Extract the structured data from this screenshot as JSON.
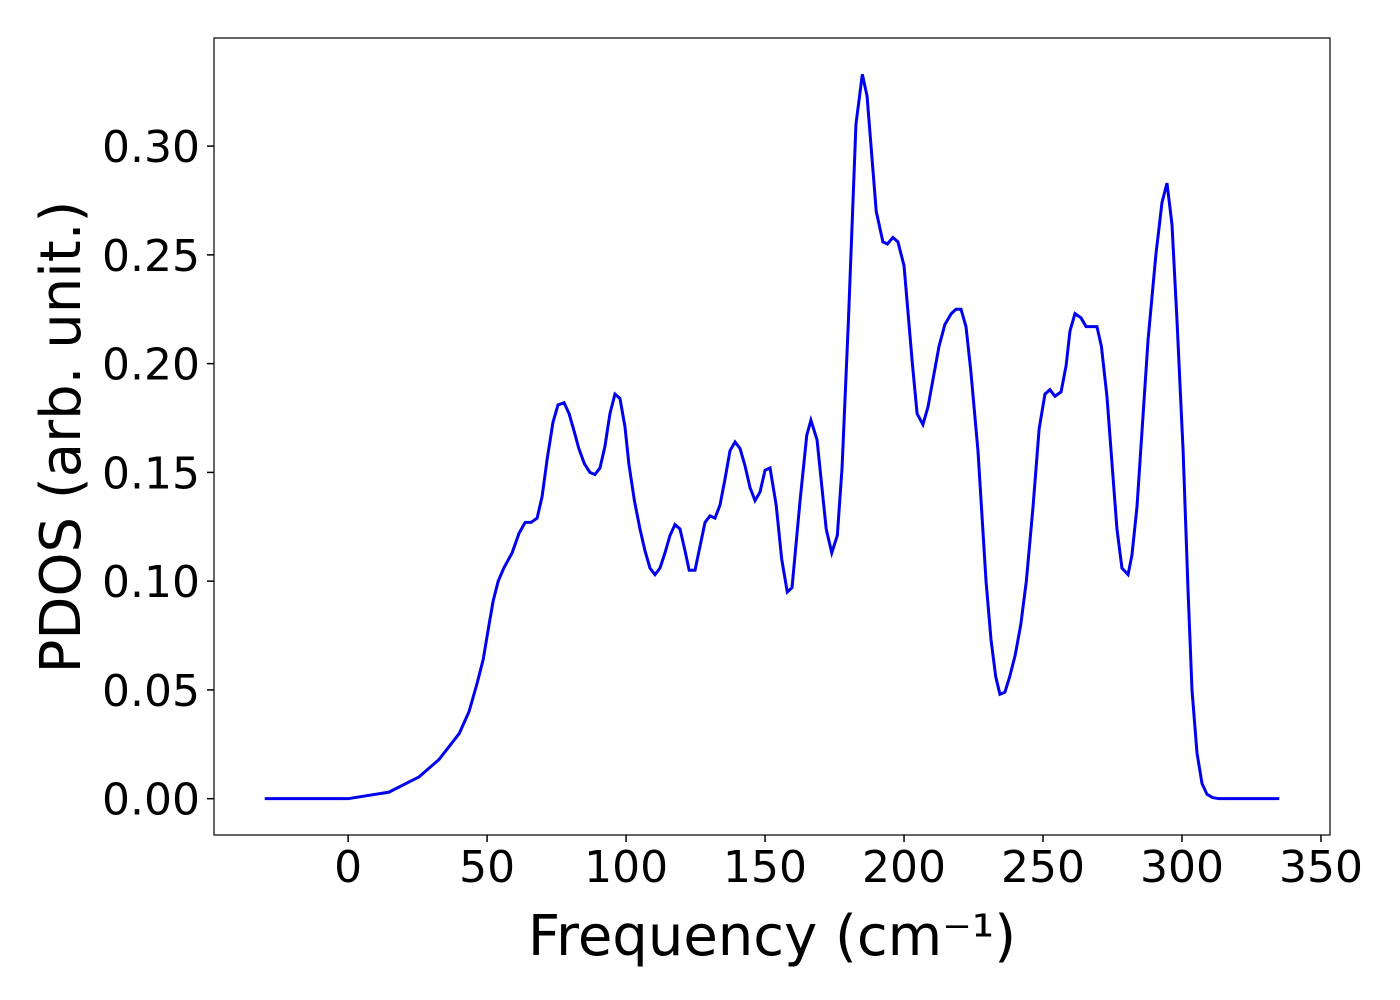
{
  "chart_data": {
    "type": "line",
    "xlabel": "Frequency (cm⁻¹)",
    "ylabel": "PDOS (arb. unit.)",
    "xlim": [
      -48.25,
      353.25
    ],
    "ylim": [
      -0.0167,
      0.3497
    ],
    "xticks": [
      0,
      50,
      100,
      150,
      200,
      250,
      300,
      350
    ],
    "yticks": [
      {
        "value": 0,
        "label": "0.00"
      },
      {
        "value": 0.05,
        "label": "0.05"
      },
      {
        "value": 0.1,
        "label": "0.10"
      },
      {
        "value": 0.15,
        "label": "0.15"
      },
      {
        "value": 0.2,
        "label": "0.20"
      },
      {
        "value": 0.25,
        "label": "0.25"
      },
      {
        "value": 0.3,
        "label": "0.30"
      }
    ],
    "series": [
      {
        "color": "#0000ee",
        "x": [
          -30,
          -10,
          0,
          14.7,
          25.5,
          32.7,
          40,
          43.5,
          46.4,
          48.6,
          50.7,
          52.2,
          54,
          56,
          59,
          61.5,
          63.7,
          65.8,
          68,
          69.8,
          71.6,
          73.7,
          75.5,
          77.7,
          79.5,
          81.3,
          83,
          85,
          87,
          88.8,
          90.6,
          92.4,
          94.2,
          96,
          97.8,
          99.6,
          101,
          103,
          105,
          106.8,
          108.6,
          110.4,
          112.2,
          114,
          115.8,
          117.6,
          119.4,
          121.2,
          122.7,
          124.8,
          126.6,
          128.4,
          130.2,
          132,
          133.8,
          135.6,
          137.4,
          139.2,
          141,
          142.8,
          144.6,
          146.4,
          148.2,
          150,
          151.8,
          154,
          156,
          158,
          159.7,
          162.6,
          165,
          166.5,
          168.7,
          172,
          174,
          176,
          177.7,
          180,
          182.7,
          185,
          186.7,
          190,
          192.4,
          194,
          196,
          197.8,
          200,
          203,
          204.7,
          206.8,
          208.6,
          212.6,
          214.7,
          217,
          218.7,
          220.5,
          222.3,
          224,
          226.6,
          229.5,
          231.3,
          233,
          234.5,
          236.3,
          238,
          240,
          242,
          244,
          246.4,
          248.6,
          250.7,
          252.5,
          254.3,
          256.5,
          258.3,
          259.7,
          261.5,
          263.7,
          265.5,
          269.4,
          271,
          273,
          276.6,
          278.4,
          280.6,
          282,
          283.8,
          287.8,
          290.6,
          292.8,
          294.6,
          296.4,
          298.2,
          300.4,
          302.2,
          303.6,
          305.4,
          307.2,
          309,
          311,
          313.3,
          335
        ],
        "values": [
          0,
          0,
          0,
          0.003,
          0.01,
          0.018,
          0.03,
          0.04,
          0.053,
          0.064,
          0.08,
          0.091,
          0.1,
          0.106,
          0.113,
          0.122,
          0.127,
          0.127,
          0.129,
          0.139,
          0.156,
          0.173,
          0.181,
          0.182,
          0.177,
          0.169,
          0.161,
          0.154,
          0.15,
          0.149,
          0.152,
          0.162,
          0.177,
          0.186,
          0.184,
          0.171,
          0.154,
          0.137,
          0.124,
          0.114,
          0.106,
          0.103,
          0.106,
          0.113,
          0.121,
          0.126,
          0.124,
          0.114,
          0.105,
          0.105,
          0.116,
          0.127,
          0.13,
          0.129,
          0.135,
          0.147,
          0.16,
          0.164,
          0.161,
          0.153,
          0.143,
          0.137,
          0.141,
          0.151,
          0.152,
          0.135,
          0.11,
          0.095,
          0.097,
          0.137,
          0.167,
          0.174,
          0.165,
          0.124,
          0.113,
          0.121,
          0.152,
          0.22,
          0.31,
          0.333,
          0.323,
          0.27,
          0.256,
          0.255,
          0.258,
          0.256,
          0.245,
          0.2,
          0.177,
          0.172,
          0.18,
          0.208,
          0.218,
          0.223,
          0.225,
          0.225,
          0.217,
          0.197,
          0.16,
          0.1,
          0.073,
          0.056,
          0.048,
          0.049,
          0.056,
          0.066,
          0.08,
          0.1,
          0.134,
          0.17,
          0.186,
          0.188,
          0.185,
          0.187,
          0.199,
          0.215,
          0.223,
          0.221,
          0.217,
          0.217,
          0.208,
          0.185,
          0.124,
          0.106,
          0.103,
          0.112,
          0.134,
          0.211,
          0.25,
          0.274,
          0.283,
          0.264,
          0.22,
          0.16,
          0.095,
          0.05,
          0.021,
          0.007,
          0.002,
          0.0005,
          0,
          0
        ]
      }
    ]
  }
}
